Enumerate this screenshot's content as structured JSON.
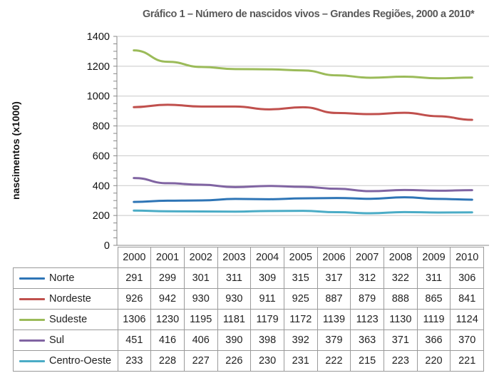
{
  "chart_data": {
    "type": "line",
    "title": "Gráfico 1 – Número de nascidos vivos – Grandes Regiões, 2000 a 2010*",
    "ylabel": "nascimentos (x1000)",
    "xlabel": "",
    "ylim": [
      0,
      1400
    ],
    "yticks": [
      "0",
      "200",
      "400",
      "600",
      "800",
      "1000",
      "1200",
      "1400"
    ],
    "x": [
      "2000",
      "2001",
      "2002",
      "2003",
      "2004",
      "2005",
      "2006",
      "2007",
      "2008",
      "2009",
      "2010"
    ],
    "grid": true,
    "legend": "table-below",
    "series": [
      {
        "name": "Norte",
        "color": "#2e75b6",
        "values": [
          291,
          299,
          301,
          311,
          309,
          315,
          317,
          312,
          322,
          311,
          306
        ]
      },
      {
        "name": "Nordeste",
        "color": "#c0504d",
        "values": [
          926,
          942,
          930,
          930,
          911,
          925,
          887,
          879,
          888,
          865,
          841
        ]
      },
      {
        "name": "Sudeste",
        "color": "#9bbb59",
        "values": [
          1306,
          1230,
          1195,
          1181,
          1179,
          1172,
          1139,
          1123,
          1130,
          1119,
          1124
        ]
      },
      {
        "name": "Sul",
        "color": "#8064a2",
        "values": [
          451,
          416,
          406,
          390,
          398,
          392,
          379,
          363,
          371,
          366,
          370
        ]
      },
      {
        "name": "Centro-Oeste",
        "color": "#4bacc6",
        "values": [
          233,
          228,
          227,
          226,
          230,
          231,
          222,
          215,
          223,
          220,
          221
        ]
      }
    ]
  }
}
